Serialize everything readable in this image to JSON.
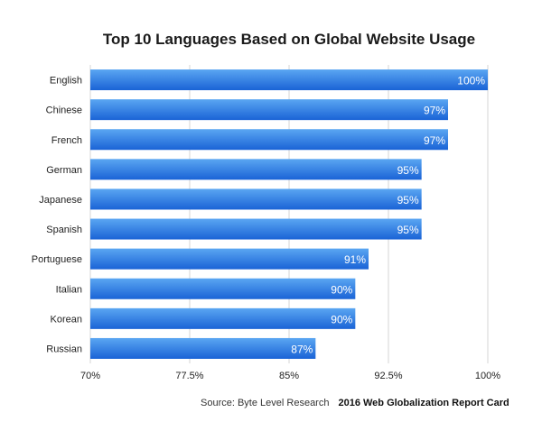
{
  "chart_data": {
    "type": "bar",
    "orientation": "horizontal",
    "title": "Top 10 Languages Based on Global Website Usage",
    "categories": [
      "English",
      "Chinese",
      "French",
      "German",
      "Japanese",
      "Spanish",
      "Portuguese",
      "Italian",
      "Korean",
      "Russian"
    ],
    "values": [
      100,
      97,
      97,
      95,
      95,
      95,
      91,
      90,
      90,
      87
    ],
    "value_labels": [
      "100%",
      "97%",
      "97%",
      "95%",
      "95%",
      "95%",
      "91%",
      "90%",
      "90%",
      "87%"
    ],
    "xlim": [
      70,
      100
    ],
    "x_ticks": [
      70,
      77.5,
      85,
      92.5,
      100
    ],
    "x_tick_labels": [
      "70%",
      "77.5%",
      "85%",
      "92.5%",
      "100%"
    ],
    "grid": true,
    "xlabel": "",
    "ylabel": ""
  },
  "source": {
    "text": "Source: Byte Level Research",
    "report": "2016 Web Globalization Report Card"
  },
  "colors": {
    "bar_top": "#5aa6f2",
    "bar_bottom": "#1a63d6",
    "bar_label": "#ffffff",
    "grid": "#d6d6d6"
  }
}
